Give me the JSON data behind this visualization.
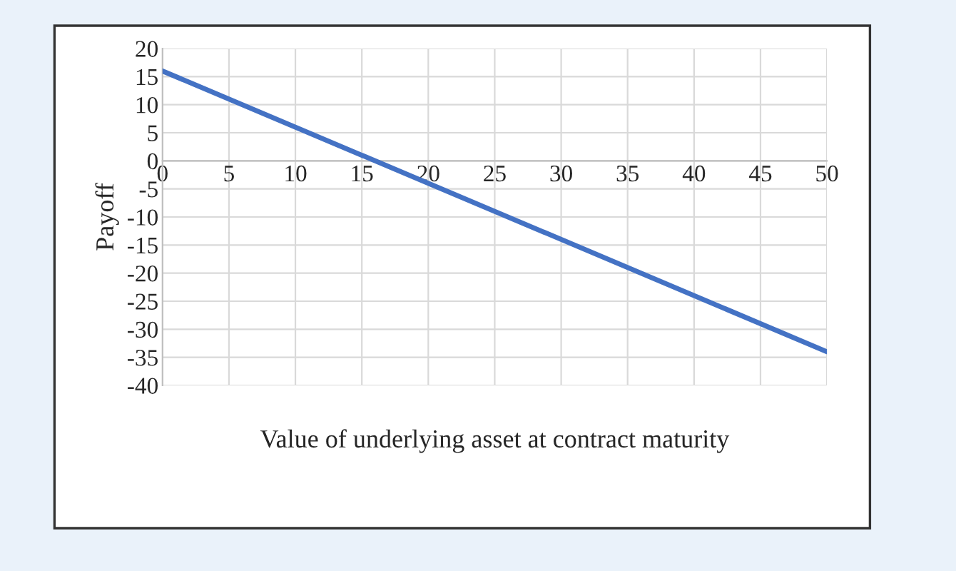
{
  "chart_data": {
    "type": "line",
    "xlabel": "Value of underlying asset at contract maturity",
    "ylabel": "Payoff",
    "series": [
      {
        "color": "#4472c4",
        "x": [
          0,
          50
        ],
        "values": [
          16,
          -34
        ]
      }
    ],
    "xlim": [
      0,
      50
    ],
    "xticks": [
      0,
      5,
      10,
      15,
      20,
      25,
      30,
      35,
      40,
      45,
      50
    ],
    "ylim": [
      -40,
      20
    ],
    "yticks": [
      -40,
      -35,
      -30,
      -25,
      -20,
      -15,
      -10,
      -5,
      0,
      5,
      10,
      15,
      20
    ],
    "grid": true,
    "legend": false,
    "marker": "none",
    "line_style": "solid"
  }
}
